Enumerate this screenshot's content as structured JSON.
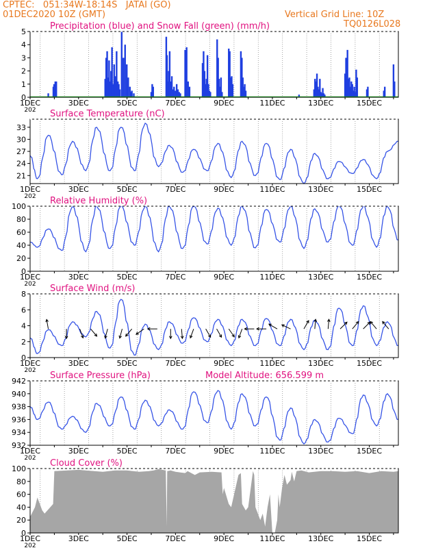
{
  "header": {
    "line1": "CPTEC:   051:34W-18:14S   JATAI (GO)",
    "line2": "01DEC2020 10Z (GMT)",
    "grid_note": "Vertical Grid Line: 10Z",
    "code": "TQ0126L028"
  },
  "colors": {
    "header": "#e8781e",
    "title": "#e0117f",
    "precip": "#1f3fe0",
    "snow": "#19b419",
    "line": "#3553e6",
    "cloud": "#a6a6a6",
    "wind_arrow": "#000000",
    "grid": "#8c8c8c"
  },
  "x_axis": {
    "tick_labels": [
      "1DEC",
      "3DEC",
      "5DEC",
      "7DEC",
      "9DEC",
      "11DEC",
      "13DEC",
      "15DEC"
    ],
    "year_fragment": "202",
    "start_day": 1,
    "end_day": 16.2,
    "grid_lines": "dotted vertical at 10Z each day"
  },
  "chart_data": [
    {
      "type": "bar",
      "title": "Precipitation (blue) and Snow Fall (green) (mm/h)",
      "ylim": [
        0,
        5
      ],
      "yticks": [
        "0",
        "1",
        "2",
        "3",
        "4",
        "5"
      ],
      "series": [
        {
          "name": "Precipitation",
          "x": [
            1.75,
            1.96,
            1.99,
            2.04,
            2.08,
            4.1,
            4.14,
            4.18,
            4.22,
            4.26,
            4.3,
            4.34,
            4.38,
            4.42,
            4.47,
            4.52,
            4.57,
            4.62,
            4.66,
            4.7,
            4.78,
            4.85,
            4.92,
            4.99,
            5.05,
            5.12,
            5.16,
            5.2,
            5.28,
            6.0,
            6.04,
            6.08,
            6.62,
            6.65,
            6.68,
            6.72,
            6.76,
            6.8,
            6.85,
            6.9,
            6.94,
            7.0,
            7.05,
            7.1,
            7.15,
            7.2,
            7.4,
            7.46,
            7.52,
            7.58,
            8.12,
            8.16,
            8.2,
            8.24,
            8.28,
            8.32,
            8.36,
            8.4,
            8.44,
            8.72,
            8.76,
            8.8,
            8.84,
            8.88,
            8.92,
            9.2,
            9.24,
            9.28,
            9.32,
            9.36,
            9.7,
            9.74,
            9.78,
            9.82,
            9.86,
            9.9,
            12.1,
            12.72,
            12.76,
            12.8,
            12.84,
            12.88,
            12.92,
            12.96,
            13.0,
            13.04,
            13.08,
            13.12,
            13.16,
            14.0,
            14.04,
            14.1,
            14.14,
            14.18,
            14.22,
            14.26,
            14.3,
            14.34,
            14.38,
            14.42,
            14.46,
            14.5,
            14.9,
            14.94,
            15.6,
            15.64,
            16.0,
            16.04
          ],
          "values": [
            0.3,
            0.8,
            1.0,
            1.2,
            1.2,
            1.4,
            3.0,
            3.5,
            1.5,
            2.8,
            1.2,
            2.0,
            3.8,
            1.0,
            2.5,
            1.6,
            3.5,
            1.2,
            1.0,
            0.6,
            5.0,
            3.0,
            4.0,
            2.5,
            1.5,
            0.8,
            0.4,
            0.5,
            0.3,
            0.4,
            1.0,
            0.8,
            4.6,
            3.2,
            1.2,
            2.0,
            3.5,
            1.2,
            1.6,
            0.6,
            0.8,
            0.5,
            1.0,
            0.6,
            0.4,
            0.3,
            3.6,
            3.8,
            1.2,
            0.8,
            2.6,
            3.5,
            2.0,
            1.0,
            1.4,
            3.2,
            1.0,
            0.5,
            0.4,
            4.4,
            3.0,
            1.4,
            0.8,
            1.5,
            0.4,
            3.7,
            3.5,
            1.5,
            1.6,
            1.0,
            3.5,
            3.0,
            1.5,
            0.8,
            1.0,
            0.5,
            0.2,
            0.6,
            1.4,
            1.2,
            1.8,
            0.8,
            0.6,
            1.4,
            0.4,
            0.3,
            0.7,
            0.3,
            0.2,
            1.8,
            3.0,
            3.6,
            1.4,
            1.5,
            0.8,
            1.2,
            1.0,
            0.5,
            0.8,
            0.4,
            2.1,
            1.5,
            0.6,
            0.8,
            0.5,
            0.8,
            2.5,
            1.2
          ]
        },
        {
          "name": "Snow Fall",
          "x": [
            1.0,
            16.2
          ],
          "values": [
            0,
            0
          ]
        }
      ]
    },
    {
      "type": "line",
      "title": "Surface Temperature (nC)",
      "ylim": [
        19,
        35
      ],
      "yticks": [
        "21",
        "24",
        "27",
        "30",
        "33"
      ],
      "series": [
        {
          "name": "Temperature",
          "mins": [
            20.2,
            21.2,
            22.2,
            22.2,
            22.2,
            23.2,
            21.8,
            22.2,
            20.5,
            21.0,
            20.0,
            19.0,
            20.2,
            21.5,
            20.2,
            21.0
          ],
          "maxs": [
            31.0,
            29.5,
            33.0,
            33.0,
            34.0,
            28.5,
            27.5,
            29.0,
            29.5,
            29.0,
            27.5,
            26.5,
            24.5,
            25.0,
            27.0,
            30.5
          ],
          "start": 26.0,
          "end": 29.5
        }
      ]
    },
    {
      "type": "line",
      "title": "Relative Humidity (%)",
      "ylim": [
        0,
        100
      ],
      "yticks": [
        "0",
        "20",
        "40",
        "60",
        "80",
        "100"
      ],
      "series": [
        {
          "name": "Relative Humidity",
          "mins": [
            37,
            32,
            30,
            35,
            40,
            30,
            35,
            42,
            40,
            36,
            45,
            35,
            45,
            40,
            37,
            48
          ],
          "maxs": [
            65,
            100,
            100,
            100,
            100,
            100,
            100,
            97,
            100,
            95,
            100,
            96,
            100,
            100,
            100,
            50
          ],
          "start": 45,
          "end": 48
        }
      ]
    },
    {
      "type": "line",
      "title": "Surface Wind (m/s)",
      "ylim": [
        0,
        8
      ],
      "yticks": [
        "0",
        "2",
        "4",
        "6",
        "8"
      ],
      "series": [
        {
          "name": "Wind speed",
          "mins": [
            0.5,
            1.5,
            2.6,
            1.2,
            0.3,
            1.0,
            1.8,
            2.0,
            1.5,
            1.5,
            1.5,
            1.0,
            1.0,
            1.5,
            1.5,
            0.8
          ],
          "maxs": [
            3.5,
            4.5,
            5.8,
            7.3,
            4.2,
            4.5,
            5.0,
            4.8,
            4.8,
            4.9,
            4.8,
            4.7,
            6.2,
            6.5,
            4.5,
            4.5
          ],
          "start": 2.5,
          "end": 1.5
        }
      ],
      "wind_arrows": [
        {
          "day": 1.75,
          "dir": 350
        },
        {
          "day": 2.5,
          "dir": 180
        },
        {
          "day": 3.05,
          "dir": 160
        },
        {
          "day": 3.5,
          "dir": 140
        },
        {
          "day": 4.2,
          "dir": 195
        },
        {
          "day": 4.8,
          "dir": 195
        },
        {
          "day": 5.2,
          "dir": 220
        },
        {
          "day": 5.7,
          "dir": 235
        },
        {
          "day": 6.25,
          "dir": 270
        },
        {
          "day": 6.8,
          "dir": 180
        },
        {
          "day": 7.25,
          "dir": 175
        },
        {
          "day": 7.75,
          "dir": 200
        },
        {
          "day": 8.25,
          "dir": 150
        },
        {
          "day": 8.7,
          "dir": 150
        },
        {
          "day": 9.2,
          "dir": 145
        },
        {
          "day": 9.75,
          "dir": 200
        },
        {
          "day": 10.25,
          "dir": 270
        },
        {
          "day": 10.75,
          "dir": 270
        },
        {
          "day": 11.2,
          "dir": 300
        },
        {
          "day": 11.75,
          "dir": 295
        },
        {
          "day": 12.3,
          "dir": 30
        },
        {
          "day": 12.75,
          "dir": 5
        },
        {
          "day": 13.3,
          "dir": 5
        },
        {
          "day": 13.8,
          "dir": 45
        },
        {
          "day": 14.3,
          "dir": 40
        },
        {
          "day": 14.75,
          "dir": 45
        },
        {
          "day": 15.3,
          "dir": 320
        },
        {
          "day": 15.8,
          "dir": 320
        }
      ]
    },
    {
      "type": "line",
      "title": "Surface Pressure (hPa)",
      "subtitle": "Model Altitude: 656.599  m",
      "ylim": [
        932,
        942
      ],
      "yticks": [
        "932",
        "934",
        "936",
        "938",
        "940",
        "942"
      ],
      "series": [
        {
          "name": "Pressure",
          "mins": [
            936.0,
            934.5,
            934.0,
            935.0,
            934.5,
            935.0,
            934.5,
            935.5,
            934.5,
            935.0,
            932.8,
            932.2,
            932.5,
            933.8,
            935.0,
            933.0
          ],
          "maxs": [
            938.7,
            936.5,
            938.5,
            939.5,
            939.0,
            937.5,
            940.3,
            940.5,
            940.0,
            939.5,
            937.8,
            936.0,
            936.2,
            939.8,
            940.0,
            938.8
          ],
          "start": 938.0,
          "end": 936.0
        }
      ]
    },
    {
      "type": "area",
      "title": "Cloud Cover (%)",
      "ylim": [
        0,
        100
      ],
      "yticks": [
        "0",
        "20",
        "40",
        "60",
        "80",
        "100"
      ],
      "series": [
        {
          "name": "Cloud Cover",
          "x": [
            1.0,
            1.2,
            1.3,
            1.5,
            1.6,
            1.95,
            2.0,
            3.0,
            4.0,
            4.5,
            5.0,
            5.5,
            5.9,
            6.1,
            6.3,
            6.6,
            6.64,
            6.66,
            6.8,
            7.0,
            7.4,
            7.5,
            7.8,
            8.0,
            8.5,
            8.9,
            8.95,
            9.0,
            9.2,
            9.3,
            9.6,
            9.7,
            9.75,
            9.9,
            10.0,
            10.2,
            10.25,
            10.3,
            10.5,
            10.6,
            10.7,
            10.8,
            10.9,
            11.0,
            11.1,
            11.2,
            11.25,
            11.3,
            11.4,
            11.5,
            11.6,
            11.75,
            11.8,
            11.9,
            12.0,
            12.2,
            12.5,
            13.0,
            13.5,
            14.0,
            14.5,
            15.0,
            15.5,
            16.0,
            16.2
          ],
          "values": [
            25,
            40,
            55,
            35,
            30,
            45,
            96,
            98,
            95,
            97,
            97,
            95,
            96,
            97,
            99,
            97,
            10,
            96,
            97,
            95,
            93,
            96,
            90,
            94,
            95,
            94,
            60,
            70,
            45,
            40,
            90,
            93,
            45,
            35,
            40,
            96,
            90,
            40,
            20,
            30,
            10,
            40,
            60,
            0,
            0,
            20,
            60,
            40,
            70,
            90,
            75,
            82,
            95,
            80,
            96,
            97,
            94,
            96,
            96,
            95,
            96,
            93,
            96,
            95,
            96
          ]
        }
      ]
    }
  ]
}
